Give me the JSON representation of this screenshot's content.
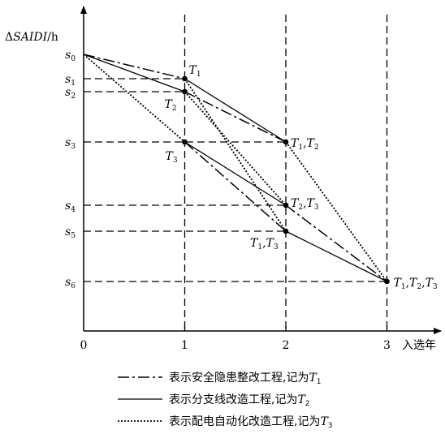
{
  "chart_data": {
    "type": "line",
    "ylabel": "ΔSAIDI/h",
    "xlabel": "入选年",
    "x_ticks": [
      "0",
      "1",
      "2",
      "3"
    ],
    "y_levels": [
      {
        "name": "s0",
        "base": "s",
        "sub": "0",
        "value": 0
      },
      {
        "name": "s1",
        "base": "s",
        "sub": "1",
        "value": 1
      },
      {
        "name": "s2",
        "base": "s",
        "sub": "2",
        "value": 2
      },
      {
        "name": "s3",
        "base": "s",
        "sub": "3",
        "value": 3
      },
      {
        "name": "s4",
        "base": "s",
        "sub": "4",
        "value": 4
      },
      {
        "name": "s5",
        "base": "s",
        "sub": "5",
        "value": 5
      },
      {
        "name": "s6",
        "base": "s",
        "sub": "6",
        "value": 6
      }
    ],
    "nodes": [
      {
        "id": "start",
        "x": 0,
        "level": 0,
        "label": ""
      },
      {
        "id": "n1a",
        "x": 1,
        "level": 1,
        "label": "T1"
      },
      {
        "id": "n1b",
        "x": 1,
        "level": 2,
        "label": "T2"
      },
      {
        "id": "n1c",
        "x": 1,
        "level": 3,
        "label": "T3"
      },
      {
        "id": "n2a",
        "x": 2,
        "level": 3,
        "label": "T1,T2"
      },
      {
        "id": "n2b",
        "x": 2,
        "level": 4,
        "label": "T2,T3"
      },
      {
        "id": "n2c",
        "x": 2,
        "level": 5,
        "label": "T1,T3"
      },
      {
        "id": "end",
        "x": 3,
        "level": 6,
        "label": "T1,T2,T3"
      }
    ],
    "edges": [
      {
        "from": "start",
        "to": "n1a",
        "style": "dashdot"
      },
      {
        "from": "start",
        "to": "n1b",
        "style": "solid"
      },
      {
        "from": "start",
        "to": "n1c",
        "style": "dotted"
      },
      {
        "from": "n1a",
        "to": "n2a",
        "style": "solid"
      },
      {
        "from": "n1a",
        "to": "n2c",
        "style": "dotted"
      },
      {
        "from": "n1b",
        "to": "n2a",
        "style": "dashdot"
      },
      {
        "from": "n1b",
        "to": "n2b",
        "style": "dotted"
      },
      {
        "from": "n1c",
        "to": "n2b",
        "style": "solid"
      },
      {
        "from": "n1c",
        "to": "n2c",
        "style": "dashdot"
      },
      {
        "from": "n2a",
        "to": "end",
        "style": "dotted"
      },
      {
        "from": "n2b",
        "to": "end",
        "style": "dashdot"
      },
      {
        "from": "n2c",
        "to": "end",
        "style": "solid"
      }
    ],
    "legend": [
      {
        "style": "dashdot",
        "text": "表示安全隐患整改工程,记为",
        "symbol": "T",
        "sub": "1"
      },
      {
        "style": "solid",
        "text": "表示分支线改造工程,记为",
        "symbol": "T",
        "sub": "2"
      },
      {
        "style": "dotted",
        "text": "表示配电自动化改造工程,记为",
        "symbol": "T",
        "sub": "3"
      }
    ],
    "grid": "dashed reference lines at x=1,2,3 and at each s level",
    "legend_position": "bottom"
  }
}
